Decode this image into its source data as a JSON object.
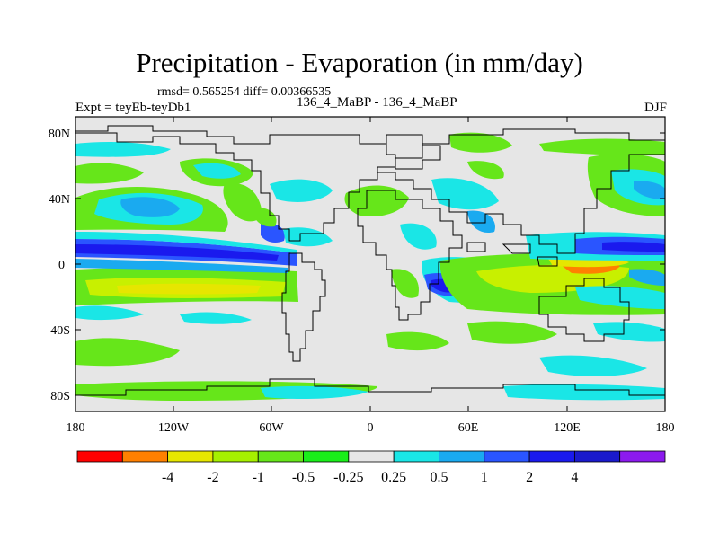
{
  "map": {
    "title": "Precipitation - Evaporation (in mm/day)",
    "stats": "rmsd= 0.565254 diff= 0.00366535",
    "left_label": "Expt = teyEb-teyDb1",
    "center_label": "136_4_MaBP - 136_4_MaBP",
    "right_label": "DJF",
    "lat_ticks": [
      "80N",
      "40N",
      "0",
      "40S",
      "80S"
    ],
    "lon_ticks": [
      "180",
      "120W",
      "60W",
      "0",
      "60E",
      "120E",
      "180"
    ]
  },
  "colorbar": {
    "colors": [
      "#ff0000",
      "#ff8000",
      "#e6e600",
      "#a6f000",
      "#66e61a",
      "#1aee1a",
      "#e6e6e6",
      "#1ae6e6",
      "#1aaaf0",
      "#2a55ff",
      "#1a1aee",
      "#1a1acc",
      "#8c1aee"
    ],
    "labels": [
      "-4",
      "-2",
      "-1",
      "-0.5",
      "-0.25",
      "0.25",
      "0.5",
      "1",
      "2",
      "4"
    ]
  }
}
